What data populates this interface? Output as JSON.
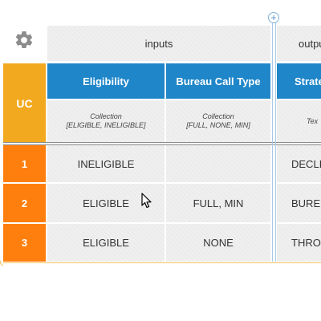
{
  "table": {
    "header": {
      "uc_label": "UC",
      "groups": {
        "inputs": "inputs",
        "outputs": "outpu"
      },
      "columns": [
        {
          "label": "Eligibility",
          "type_line1": "Collection",
          "type_line2": "[ELIGIBLE, INELIGIBLE]"
        },
        {
          "label": "Bureau Call Type",
          "type_line1": "Collection",
          "type_line2": "[FULL, NONE, MIN]"
        },
        {
          "label": "Strate",
          "type_line1": "Tex",
          "type_line2": ""
        }
      ]
    },
    "rows": [
      {
        "num": "1",
        "eligibility": "INELIGIBLE",
        "bureau": "",
        "strategy": "DECLI"
      },
      {
        "num": "2",
        "eligibility": "ELIGIBLE",
        "bureau": "FULL, MIN",
        "strategy": "BURE"
      },
      {
        "num": "3",
        "eligibility": "ELIGIBLE",
        "bureau": "NONE",
        "strategy": "THROU"
      }
    ]
  },
  "icons": {
    "settings": "gear-icon",
    "add_column": "plus-icon",
    "cursor": "mouse-pointer-icon"
  },
  "colors": {
    "header_blue": "#1f86c9",
    "uc_amber": "#f2a91f",
    "row_orange": "#ff7f0e"
  }
}
